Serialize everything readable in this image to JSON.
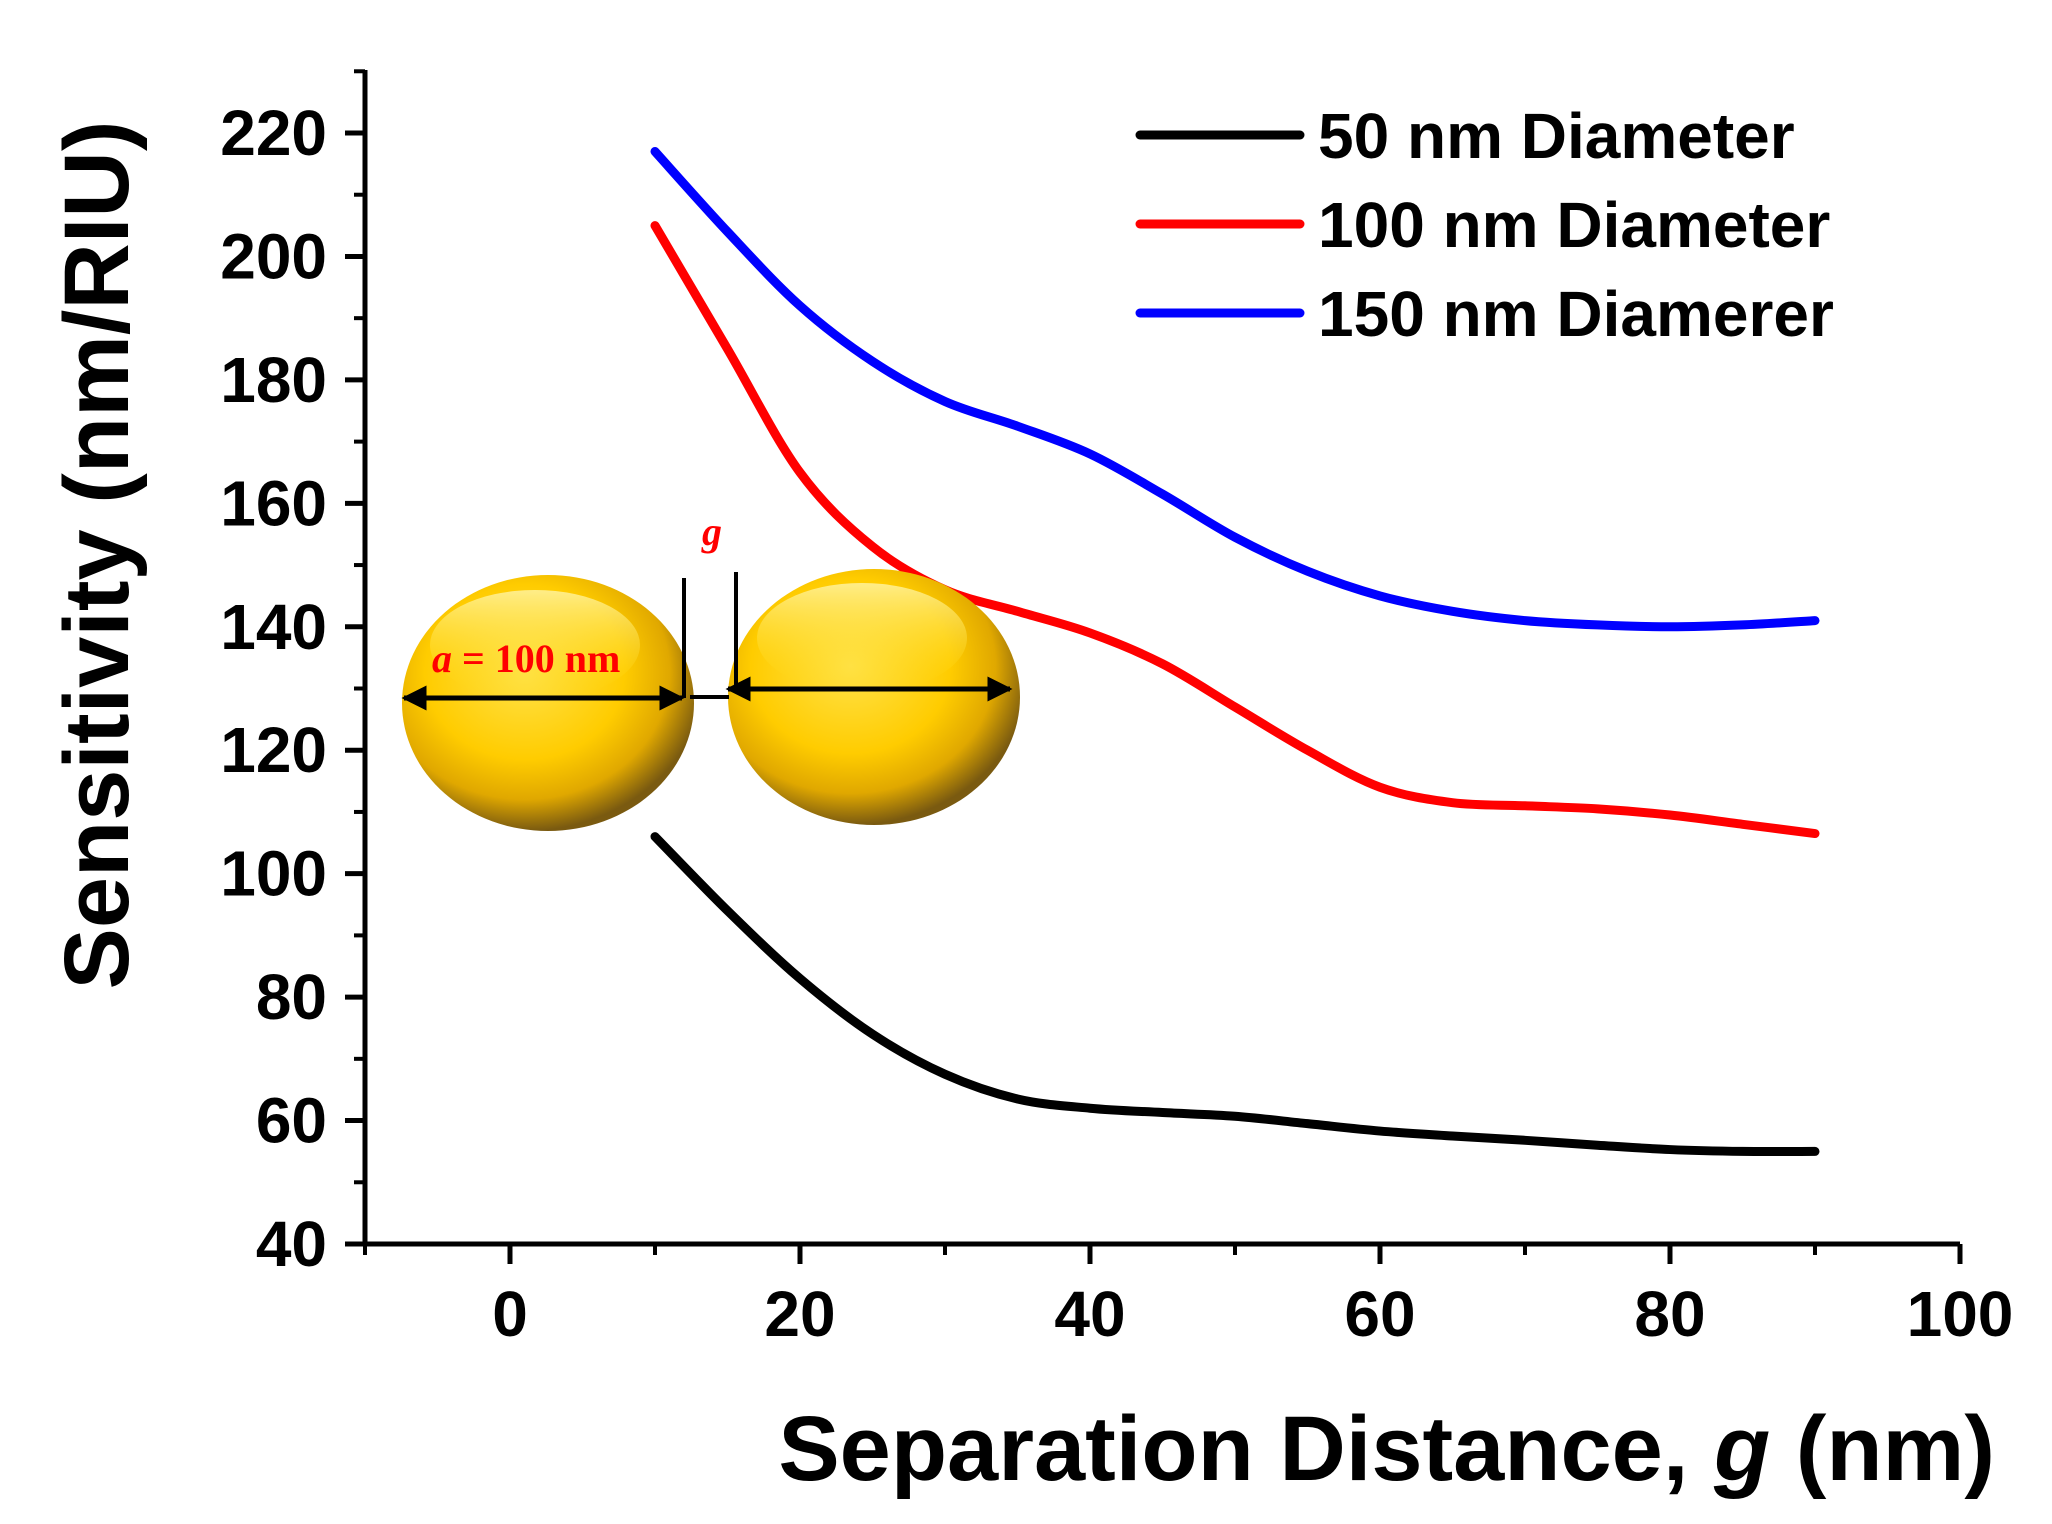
{
  "chart_data": {
    "type": "line",
    "xlabel_main": "Separation Distance, ",
    "xlabel_italic": "g",
    "xlabel_unit": " (nm)",
    "ylabel": "Sensitivity (nm/RIU)",
    "xlim": [
      -10,
      100
    ],
    "ylim": [
      40,
      230
    ],
    "xticks": [
      0,
      20,
      40,
      60,
      80,
      100
    ],
    "yticks": [
      40,
      60,
      80,
      100,
      120,
      140,
      160,
      180,
      200,
      220
    ],
    "legend_position": "top-right",
    "series": [
      {
        "name": "50 nm Diameter",
        "color": "#000000",
        "x": [
          10,
          15,
          20,
          25,
          30,
          35,
          40,
          45,
          50,
          55,
          60,
          65,
          70,
          75,
          80,
          85,
          90
        ],
        "y": [
          106,
          94,
          83,
          74,
          67.5,
          63.5,
          62,
          61.3,
          60.7,
          59.5,
          58.3,
          57.5,
          56.8,
          56,
          55.3,
          55,
          55
        ]
      },
      {
        "name": "100 nm Diameter",
        "color": "#ff0000",
        "x": [
          10,
          15,
          20,
          25,
          30,
          35,
          40,
          45,
          50,
          55,
          60,
          65,
          70,
          75,
          80,
          85,
          90
        ],
        "y": [
          205,
          185,
          165,
          153,
          146,
          142.5,
          139,
          134,
          127,
          120,
          114,
          111.5,
          111,
          110.5,
          109.5,
          108,
          106.5
        ]
      },
      {
        "name": "150 nm Diamerer",
        "color": "#0000ff",
        "x": [
          10,
          15,
          20,
          25,
          30,
          35,
          40,
          45,
          50,
          55,
          60,
          65,
          70,
          75,
          80,
          85,
          90
        ],
        "y": [
          217,
          204,
          192,
          183,
          176.5,
          172.5,
          168,
          161.5,
          154.5,
          149,
          145,
          142.5,
          141,
          140.3,
          140,
          140.3,
          141
        ]
      }
    ],
    "inset": {
      "gap_label": "g",
      "diameter_symbol": "a",
      "diameter_text": " = 100 nm"
    }
  }
}
